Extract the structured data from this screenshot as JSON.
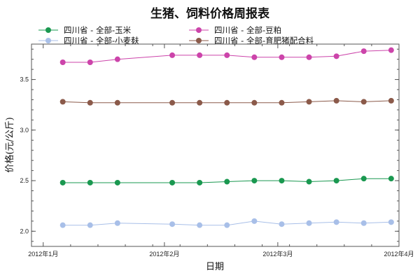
{
  "chart_data": {
    "type": "line",
    "title": "生猪、饲料价格周报表",
    "xlabel": "日期",
    "ylabel": "价格(元/公斤)",
    "x_ticks": [
      "2012年1月",
      "2012年2月",
      "2012年3月",
      "2012年4月"
    ],
    "x_range": [
      "2011-12-29",
      "2012-04-01"
    ],
    "x": [
      "2012-01-06",
      "2012-01-13",
      "2012-01-20",
      "2012-02-03",
      "2012-02-10",
      "2012-02-17",
      "2012-02-24",
      "2012-03-02",
      "2012-03-09",
      "2012-03-16",
      "2012-03-23",
      "2012-03-30"
    ],
    "y_ticks": [
      "2.0",
      "2.5",
      "3.0",
      "3.5"
    ],
    "ylim": [
      1.85,
      3.85
    ],
    "grid": false,
    "legend_position": "top",
    "series": [
      {
        "name": "四川省 - 全部-玉米",
        "color": "#1a9850",
        "values": [
          2.48,
          2.48,
          2.48,
          2.48,
          2.48,
          2.49,
          2.5,
          2.5,
          2.49,
          2.5,
          2.52,
          2.52
        ]
      },
      {
        "name": "四川省 - 全部-豆粕",
        "color": "#cc44aa",
        "values": [
          3.67,
          3.67,
          3.7,
          3.74,
          3.74,
          3.74,
          3.72,
          3.72,
          3.72,
          3.73,
          3.78,
          3.79
        ]
      },
      {
        "name": "四川省 - 全部-小麦麸",
        "color": "#a8bfe8",
        "values": [
          2.06,
          2.06,
          2.08,
          2.07,
          2.06,
          2.06,
          2.1,
          2.07,
          2.08,
          2.09,
          2.08,
          2.09
        ]
      },
      {
        "name": "四川省 - 全部-育肥猪配合料",
        "color": "#8b5a4a",
        "values": [
          3.28,
          3.27,
          3.27,
          3.27,
          3.27,
          3.27,
          3.27,
          3.27,
          3.28,
          3.29,
          3.28,
          3.29
        ]
      }
    ]
  }
}
